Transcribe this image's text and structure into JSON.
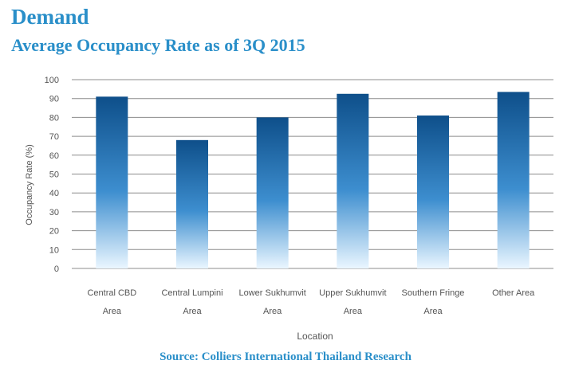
{
  "header": {
    "title": "Demand",
    "subtitle": "Average Occupancy Rate as of 3Q 2015"
  },
  "footer": {
    "source": "Source: Colliers International Thailand Research"
  },
  "chart_data": {
    "type": "bar",
    "categories": [
      [
        "Central CBD",
        "Area"
      ],
      [
        "Central Lumpini",
        "Area"
      ],
      [
        "Lower Sukhumvit",
        "Area"
      ],
      [
        "Upper Sukhumvit",
        "Area"
      ],
      [
        "Southern Fringe",
        "Area"
      ],
      [
        "Other Area"
      ]
    ],
    "values": [
      91,
      68,
      80,
      92.5,
      81,
      93.5
    ],
    "xlabel": "Location",
    "ylabel": "Occupancy Rate (%)",
    "ylim": [
      0,
      100
    ],
    "yticks": [
      0,
      10,
      20,
      30,
      40,
      50,
      60,
      70,
      80,
      90,
      100
    ],
    "grid": true,
    "colors": {
      "bar_top": "#0e4f8a",
      "bar_mid": "#3d8ecf",
      "bar_bottom": "#eaf6ff",
      "grid": "#8c8c8c",
      "text": "#555555"
    }
  }
}
